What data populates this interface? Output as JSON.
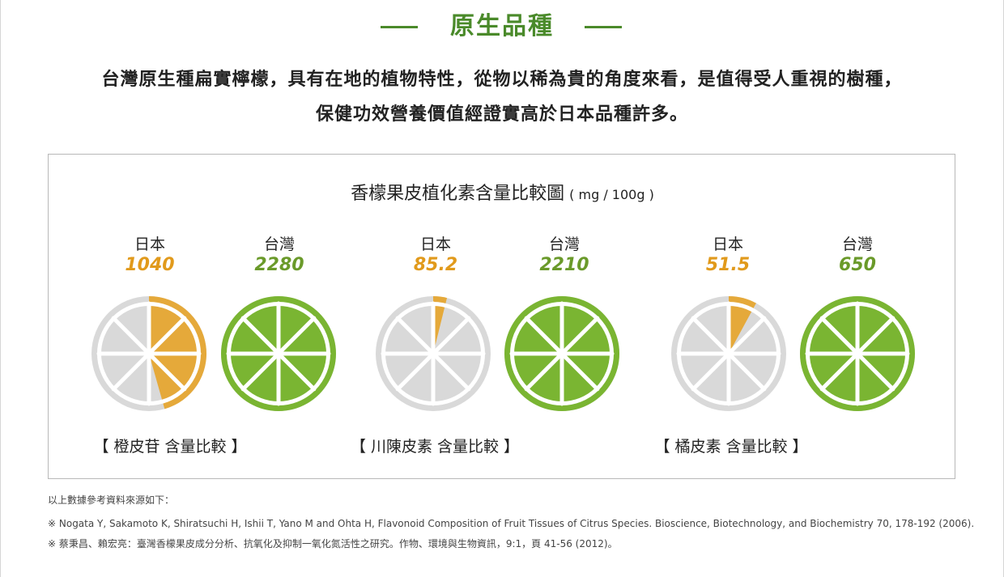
{
  "header": {
    "title": "原生品種",
    "intro_line1": "台灣原生種扁實檸檬，具有在地的植物特性，從物以稀為貴的角度來看，是值得受人重視的樹種，",
    "intro_line2": "保健功效營養價值經證實高於日本品種許多。"
  },
  "colors": {
    "accent_green": "#4a8a2a",
    "japan_orange": "#e5a93a",
    "taiwan_green": "#7ab532",
    "empty_gray": "#d9d9d9"
  },
  "chart_data": {
    "type": "pie",
    "title": "香檬果皮植化素含量比較圖",
    "unit": "( mg / 100g )",
    "country_labels": [
      "日本",
      "台灣"
    ],
    "groups": [
      {
        "name": "【 橙皮苷 含量比較 】",
        "japan": 1040,
        "taiwan": 2280,
        "japan_display": "1040",
        "taiwan_display": "2280"
      },
      {
        "name": "【 川陳皮素 含量比較 】",
        "japan": 85.2,
        "taiwan": 2210,
        "japan_display": "85.2",
        "taiwan_display": "2210"
      },
      {
        "name": "【 橘皮素 含量比較 】",
        "japan": 51.5,
        "taiwan": 650,
        "japan_display": "51.5",
        "taiwan_display": "650"
      }
    ]
  },
  "references": {
    "heading": "以上數據參考資料來源如下：",
    "items": [
      "※ Nogata Y, Sakamoto K, Shiratsuchi H, Ishii T, Yano M and Ohta H, Flavonoid Composition of Fruit Tissues of Citrus Species. Bioscience, Biotechnology, and Biochemistry 70, 178-192 (2006).",
      "※ 蔡秉昌、賴宏亮：臺灣香檬果皮成分分析、抗氧化及抑制一氧化氮活性之研究。作物、環境與生物資訊，9:1，頁 41-56 (2012)。"
    ]
  }
}
